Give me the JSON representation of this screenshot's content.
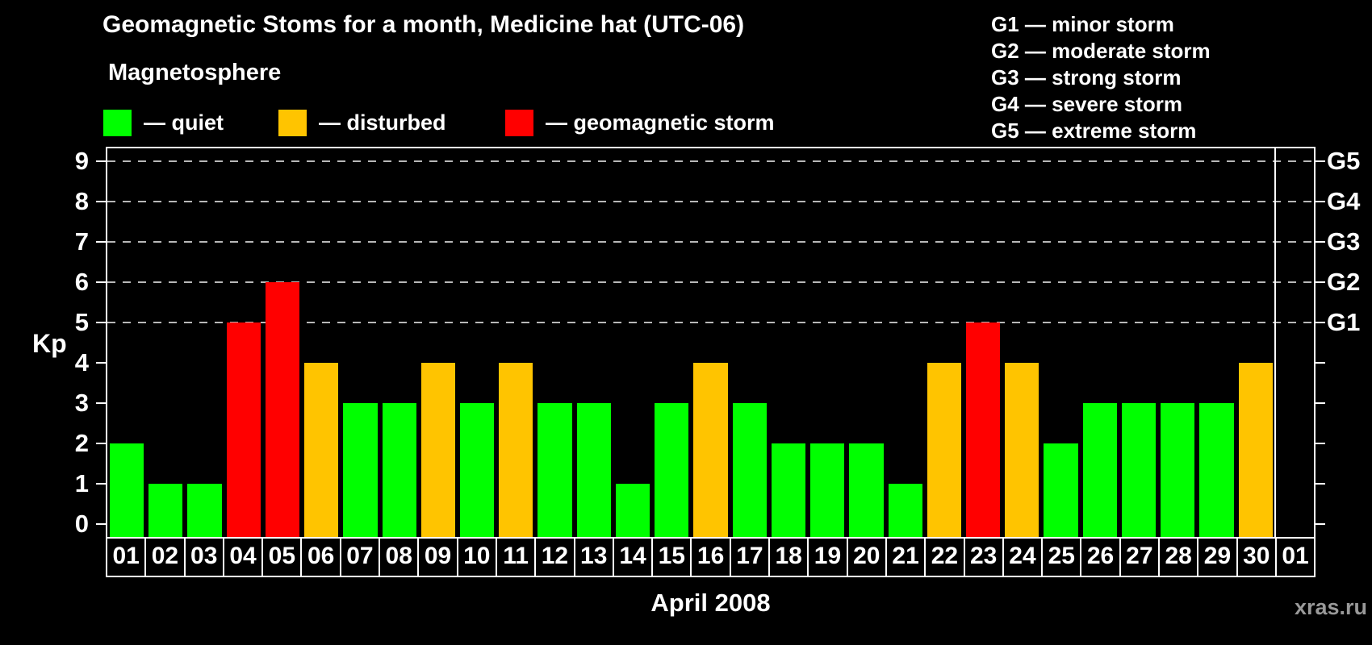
{
  "title": "Geomagnetic Stoms for a month, Medicine hat (UTC-06)",
  "subtitle": "Magnetosphere",
  "legend": {
    "items": [
      {
        "id": "quiet",
        "label": "— quiet",
        "color": "#00ff00"
      },
      {
        "id": "disturbed",
        "label": "— disturbed",
        "color": "#ffc400"
      },
      {
        "id": "storm",
        "label": "— geomagnetic storm",
        "color": "#ff0000"
      }
    ]
  },
  "g_legend": {
    "items": [
      "G1 — minor storm",
      "G2 — moderate storm",
      "G3 — strong storm",
      "G4 — severe storm",
      "G5 — extreme storm"
    ]
  },
  "watermark": "xras.ru",
  "chart_data": {
    "type": "bar",
    "title": "Geomagnetic Stoms for a month, Medicine hat (UTC-06)",
    "xlabel": "April 2008",
    "ylabel": "Kp",
    "ylim": [
      0,
      9
    ],
    "grid": "horizontal dashed gridlines at Kp 5,6,7,8,9",
    "legend_position": "top-left",
    "background": "#000000",
    "y_ticks_left": [
      "0",
      "1",
      "2",
      "3",
      "4",
      "5",
      "6",
      "7",
      "8",
      "9"
    ],
    "y_ticks_right": [
      {
        "kp": 5,
        "label": "G1"
      },
      {
        "kp": 6,
        "label": "G2"
      },
      {
        "kp": 7,
        "label": "G3"
      },
      {
        "kp": 8,
        "label": "G4"
      },
      {
        "kp": 9,
        "label": "G5"
      }
    ],
    "categories": [
      "01",
      "02",
      "03",
      "04",
      "05",
      "06",
      "07",
      "08",
      "09",
      "10",
      "11",
      "12",
      "13",
      "14",
      "15",
      "16",
      "17",
      "18",
      "19",
      "20",
      "21",
      "22",
      "23",
      "24",
      "25",
      "26",
      "27",
      "28",
      "29",
      "30",
      "01"
    ],
    "values": [
      2,
      1,
      1,
      5,
      6,
      4,
      3,
      3,
      4,
      3,
      4,
      3,
      3,
      1,
      3,
      4,
      3,
      2,
      2,
      2,
      1,
      4,
      5,
      4,
      2,
      3,
      3,
      3,
      3,
      4,
      null
    ],
    "statuses": [
      "quiet",
      "quiet",
      "quiet",
      "storm",
      "storm",
      "disturbed",
      "quiet",
      "quiet",
      "disturbed",
      "quiet",
      "disturbed",
      "quiet",
      "quiet",
      "quiet",
      "quiet",
      "disturbed",
      "quiet",
      "quiet",
      "quiet",
      "quiet",
      "quiet",
      "disturbed",
      "storm",
      "disturbed",
      "quiet",
      "quiet",
      "quiet",
      "quiet",
      "quiet",
      "disturbed",
      null
    ],
    "colors": {
      "quiet": "#00ff00",
      "disturbed": "#ffc400",
      "storm": "#ff0000"
    }
  }
}
